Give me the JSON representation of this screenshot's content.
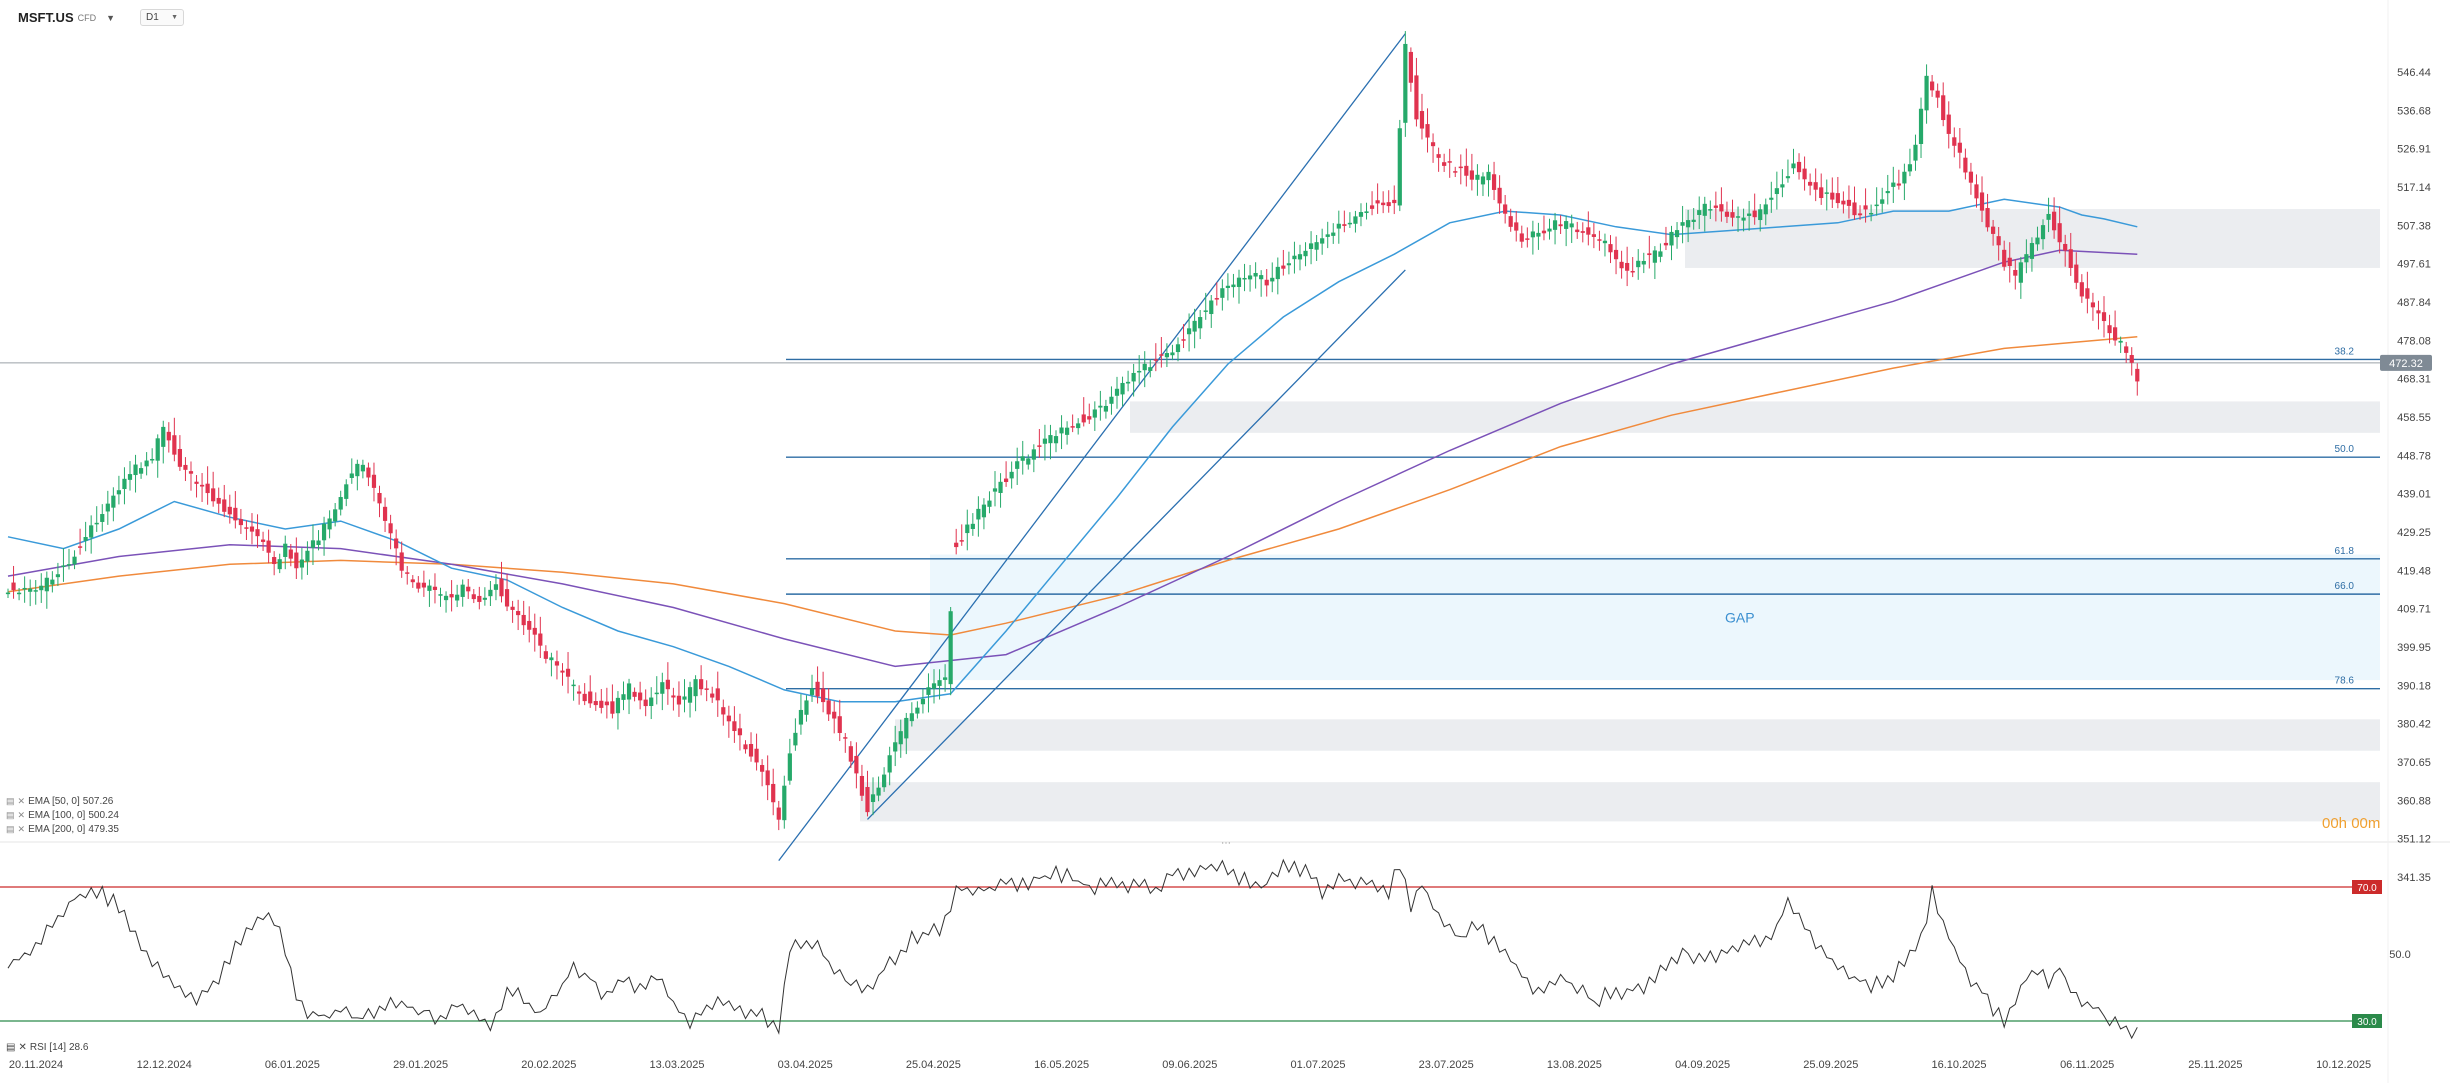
{
  "header": {
    "symbol": "MSFT.US",
    "symbol_suffix": "CFD",
    "timeframe": "D1"
  },
  "colors": {
    "bull": "#26a96a",
    "bear": "#e0334f",
    "ema50": "#3a9ad9",
    "ema100": "#7b52b8",
    "ema200": "#f08a3c",
    "fib": "#2e6da4",
    "rsi_line": "#333333",
    "rsi_upper": "#cc2b2b",
    "rsi_lower": "#2b8a4a",
    "price_tag": "#7f8a95"
  },
  "axis": {
    "price_ticks": [
      "546.44",
      "536.68",
      "526.91",
      "517.14",
      "507.38",
      "497.61",
      "487.84",
      "478.08",
      "468.31",
      "458.55",
      "448.78",
      "439.01",
      "429.25",
      "419.48",
      "409.71",
      "399.95",
      "390.18",
      "380.42",
      "370.65",
      "360.88",
      "351.12",
      "341.35"
    ],
    "date_ticks": [
      "20.11.2024",
      "12.12.2024",
      "06.01.2025",
      "29.01.2025",
      "20.02.2025",
      "13.03.2025",
      "03.04.2025",
      "25.04.2025",
      "16.05.2025",
      "09.06.2025",
      "01.07.2025",
      "23.07.2025",
      "13.08.2025",
      "04.09.2025",
      "25.09.2025",
      "16.10.2025",
      "06.11.2025",
      "25.11.2025",
      "10.12.2025"
    ],
    "current_price": "472.32",
    "rsi_ticks": [
      "70.0",
      "50.0",
      "30.0"
    ]
  },
  "fib_levels": [
    {
      "label": "38.2",
      "price": 473.2
    },
    {
      "label": "50.0",
      "price": 448.3
    },
    {
      "label": "61.8",
      "price": 422.4
    },
    {
      "label": "66.0",
      "price": 413.4
    },
    {
      "label": "78.6",
      "price": 389.3
    }
  ],
  "zones": [
    {
      "label": "",
      "from": 496.5,
      "to": 511.5
    },
    {
      "label": "",
      "from": 454.5,
      "to": 462.5
    },
    {
      "label": "GAP",
      "from": 391.5,
      "to": 423.5
    },
    {
      "label": "",
      "from": 373.5,
      "to": 381.5
    },
    {
      "label": "",
      "from": 355.5,
      "to": 365.5
    }
  ],
  "indicators": {
    "ema50": {
      "label": "EMA [50, 0]",
      "value": "507.26"
    },
    "ema100": {
      "label": "EMA [100, 0]",
      "value": "500.24"
    },
    "ema200": {
      "label": "EMA [200, 0]",
      "value": "479.35"
    },
    "rsi": {
      "label": "RSI [14]",
      "value": "28.6"
    }
  },
  "countdown": "00h 00m",
  "chart_data": {
    "type": "candlestick",
    "title": "",
    "x_start": "20.11.2024",
    "x_end": "10.12.2025",
    "ylim": [
      341.35,
      556.2
    ],
    "price_path": [
      [
        0,
        415
      ],
      [
        5,
        414
      ],
      [
        10,
        420
      ],
      [
        14,
        428
      ],
      [
        18,
        436
      ],
      [
        22,
        444
      ],
      [
        26,
        449
      ],
      [
        28,
        455
      ],
      [
        31,
        447
      ],
      [
        34,
        441
      ],
      [
        37,
        438
      ],
      [
        40,
        434
      ],
      [
        43,
        430
      ],
      [
        46,
        427
      ],
      [
        48,
        421
      ],
      [
        50,
        426
      ],
      [
        52,
        420
      ],
      [
        54,
        424
      ],
      [
        56,
        428
      ],
      [
        58,
        433
      ],
      [
        60,
        439
      ],
      [
        62,
        445
      ],
      [
        64,
        447
      ],
      [
        66,
        440
      ],
      [
        68,
        432
      ],
      [
        71,
        420
      ],
      [
        74,
        416
      ],
      [
        77,
        414
      ],
      [
        80,
        412
      ],
      [
        82,
        416
      ],
      [
        85,
        412
      ],
      [
        88,
        416
      ],
      [
        91,
        409
      ],
      [
        94,
        404
      ],
      [
        97,
        398
      ],
      [
        100,
        393
      ],
      [
        103,
        388
      ],
      [
        106,
        386
      ],
      [
        109,
        384
      ],
      [
        112,
        390
      ],
      [
        115,
        385
      ],
      [
        118,
        390
      ],
      [
        121,
        385
      ],
      [
        124,
        391
      ],
      [
        127,
        388
      ],
      [
        130,
        380
      ],
      [
        133,
        375
      ],
      [
        135,
        371
      ],
      [
        137,
        364
      ],
      [
        139,
        356
      ],
      [
        141,
        374
      ],
      [
        143,
        384
      ],
      [
        145,
        390
      ],
      [
        147,
        386
      ],
      [
        149,
        381
      ],
      [
        151,
        376
      ],
      [
        153,
        367
      ],
      [
        155,
        359
      ],
      [
        157,
        365
      ],
      [
        159,
        372
      ],
      [
        161,
        378
      ],
      [
        163,
        384
      ],
      [
        165,
        387
      ],
      [
        167,
        390
      ],
      [
        169,
        392
      ],
      [
        171,
        426
      ],
      [
        173,
        430
      ],
      [
        175,
        434
      ],
      [
        177,
        438
      ],
      [
        180,
        443
      ],
      [
        183,
        448
      ],
      [
        186,
        451
      ],
      [
        189,
        454
      ],
      [
        192,
        457
      ],
      [
        195,
        459
      ],
      [
        198,
        462
      ],
      [
        201,
        467
      ],
      [
        204,
        470
      ],
      [
        207,
        473
      ],
      [
        210,
        476
      ],
      [
        213,
        480
      ],
      [
        216,
        486
      ],
      [
        219,
        491
      ],
      [
        222,
        493
      ],
      [
        225,
        495
      ],
      [
        227,
        492
      ],
      [
        229,
        496
      ],
      [
        232,
        499
      ],
      [
        235,
        502
      ],
      [
        238,
        505
      ],
      [
        241,
        508
      ],
      [
        244,
        511
      ],
      [
        247,
        513
      ],
      [
        250,
        513
      ],
      [
        252,
        553
      ],
      [
        254,
        535
      ],
      [
        256,
        529
      ],
      [
        258,
        524
      ],
      [
        261,
        522
      ],
      [
        264,
        519
      ],
      [
        267,
        520
      ],
      [
        269,
        513
      ],
      [
        271,
        508
      ],
      [
        273,
        504
      ],
      [
        276,
        505
      ],
      [
        279,
        508
      ],
      [
        282,
        507
      ],
      [
        285,
        505
      ],
      [
        288,
        503
      ],
      [
        290,
        498
      ],
      [
        292,
        495
      ],
      [
        294,
        498
      ],
      [
        297,
        500
      ],
      [
        300,
        505
      ],
      [
        303,
        508
      ],
      [
        306,
        512
      ],
      [
        309,
        511
      ],
      [
        312,
        509
      ],
      [
        315,
        510
      ],
      [
        318,
        514
      ],
      [
        320,
        518
      ],
      [
        322,
        524
      ],
      [
        324,
        519
      ],
      [
        327,
        515
      ],
      [
        330,
        514
      ],
      [
        333,
        511
      ],
      [
        336,
        511
      ],
      [
        339,
        516
      ],
      [
        342,
        520
      ],
      [
        344,
        528
      ],
      [
        346,
        545
      ],
      [
        348,
        540
      ],
      [
        350,
        530
      ],
      [
        352,
        525
      ],
      [
        354,
        518
      ],
      [
        356,
        511
      ],
      [
        358,
        505
      ],
      [
        360,
        498
      ],
      [
        362,
        494
      ],
      [
        364,
        500
      ],
      [
        366,
        505
      ],
      [
        368,
        510
      ],
      [
        370,
        503
      ],
      [
        372,
        497
      ],
      [
        374,
        490
      ],
      [
        377,
        484
      ],
      [
        379,
        480
      ],
      [
        381,
        478
      ],
      [
        383,
        472
      ],
      [
        384,
        467
      ]
    ],
    "rsi_path": [
      [
        0,
        47
      ],
      [
        4,
        52
      ],
      [
        8,
        60
      ],
      [
        12,
        68
      ],
      [
        16,
        70
      ],
      [
        19,
        67
      ],
      [
        22,
        60
      ],
      [
        25,
        51
      ],
      [
        28,
        46
      ],
      [
        31,
        40
      ],
      [
        34,
        38
      ],
      [
        37,
        42
      ],
      [
        40,
        50
      ],
      [
        43,
        58
      ],
      [
        46,
        64
      ],
      [
        48,
        62
      ],
      [
        50,
        52
      ],
      [
        52,
        40
      ],
      [
        54,
        34
      ],
      [
        57,
        33
      ],
      [
        60,
        35
      ],
      [
        63,
        31
      ],
      [
        66,
        34
      ],
      [
        69,
        38
      ],
      [
        72,
        36
      ],
      [
        75,
        34
      ],
      [
        78,
        32
      ],
      [
        81,
        36
      ],
      [
        84,
        33
      ],
      [
        87,
        30
      ],
      [
        90,
        40
      ],
      [
        93,
        38
      ],
      [
        96,
        33
      ],
      [
        99,
        40
      ],
      [
        102,
        47
      ],
      [
        105,
        44
      ],
      [
        108,
        38
      ],
      [
        111,
        44
      ],
      [
        114,
        41
      ],
      [
        117,
        44
      ],
      [
        120,
        36
      ],
      [
        123,
        31
      ],
      [
        126,
        34
      ],
      [
        129,
        37
      ],
      [
        132,
        34
      ],
      [
        135,
        35
      ],
      [
        137,
        31
      ],
      [
        139,
        29
      ],
      [
        141,
        52
      ],
      [
        143,
        55
      ],
      [
        146,
        53
      ],
      [
        149,
        47
      ],
      [
        152,
        44
      ],
      [
        155,
        40
      ],
      [
        158,
        47
      ],
      [
        160,
        50
      ],
      [
        163,
        56
      ],
      [
        166,
        58
      ],
      [
        168,
        59
      ],
      [
        171,
        70
      ],
      [
        174,
        71
      ],
      [
        177,
        70
      ],
      [
        180,
        73
      ],
      [
        183,
        72
      ],
      [
        186,
        74
      ],
      [
        189,
        75
      ],
      [
        192,
        74
      ],
      [
        195,
        71
      ],
      [
        198,
        72
      ],
      [
        201,
        71
      ],
      [
        204,
        73
      ],
      [
        207,
        71
      ],
      [
        210,
        75
      ],
      [
        213,
        76
      ],
      [
        216,
        77
      ],
      [
        219,
        78
      ],
      [
        222,
        74
      ],
      [
        225,
        72
      ],
      [
        228,
        75
      ],
      [
        231,
        78
      ],
      [
        234,
        76
      ],
      [
        237,
        70
      ],
      [
        240,
        74
      ],
      [
        243,
        73
      ],
      [
        246,
        72
      ],
      [
        249,
        70
      ],
      [
        251,
        78
      ],
      [
        253,
        65
      ],
      [
        255,
        72
      ],
      [
        257,
        66
      ],
      [
        259,
        60
      ],
      [
        262,
        56
      ],
      [
        265,
        60
      ],
      [
        268,
        55
      ],
      [
        270,
        51
      ],
      [
        272,
        48
      ],
      [
        274,
        42
      ],
      [
        277,
        40
      ],
      [
        280,
        45
      ],
      [
        283,
        41
      ],
      [
        286,
        37
      ],
      [
        289,
        40
      ],
      [
        291,
        38
      ],
      [
        293,
        41
      ],
      [
        296,
        42
      ],
      [
        299,
        48
      ],
      [
        302,
        52
      ],
      [
        305,
        49
      ],
      [
        308,
        50
      ],
      [
        311,
        53
      ],
      [
        314,
        55
      ],
      [
        317,
        56
      ],
      [
        319,
        58
      ],
      [
        321,
        68
      ],
      [
        324,
        60
      ],
      [
        327,
        52
      ],
      [
        330,
        48
      ],
      [
        333,
        44
      ],
      [
        336,
        42
      ],
      [
        339,
        44
      ],
      [
        342,
        48
      ],
      [
        345,
        56
      ],
      [
        347,
        70
      ],
      [
        350,
        56
      ],
      [
        352,
        49
      ],
      [
        354,
        44
      ],
      [
        356,
        40
      ],
      [
        358,
        35
      ],
      [
        360,
        31
      ],
      [
        362,
        38
      ],
      [
        364,
        45
      ],
      [
        366,
        47
      ],
      [
        368,
        43
      ],
      [
        370,
        47
      ],
      [
        372,
        40
      ],
      [
        374,
        37
      ],
      [
        377,
        34
      ],
      [
        380,
        30
      ],
      [
        383,
        28.6
      ]
    ],
    "ema50_path": [
      [
        0,
        428
      ],
      [
        10,
        425
      ],
      [
        20,
        430
      ],
      [
        30,
        437
      ],
      [
        40,
        433
      ],
      [
        50,
        430
      ],
      [
        60,
        432
      ],
      [
        70,
        427
      ],
      [
        80,
        420
      ],
      [
        90,
        417
      ],
      [
        100,
        410
      ],
      [
        110,
        404
      ],
      [
        120,
        400
      ],
      [
        130,
        395
      ],
      [
        140,
        389
      ],
      [
        150,
        386
      ],
      [
        160,
        386
      ],
      [
        170,
        388
      ],
      [
        180,
        404
      ],
      [
        190,
        421
      ],
      [
        200,
        438
      ],
      [
        210,
        456
      ],
      [
        220,
        472
      ],
      [
        230,
        484
      ],
      [
        240,
        493
      ],
      [
        250,
        500
      ],
      [
        260,
        508
      ],
      [
        270,
        511
      ],
      [
        280,
        510
      ],
      [
        290,
        507
      ],
      [
        300,
        505
      ],
      [
        310,
        506
      ],
      [
        320,
        507
      ],
      [
        330,
        508
      ],
      [
        340,
        511
      ],
      [
        350,
        511
      ],
      [
        360,
        514
      ],
      [
        370,
        512
      ],
      [
        374,
        510
      ],
      [
        378,
        509
      ],
      [
        384,
        507
      ]
    ],
    "ema100_path": [
      [
        0,
        418
      ],
      [
        20,
        423
      ],
      [
        40,
        426
      ],
      [
        60,
        425
      ],
      [
        80,
        421
      ],
      [
        100,
        416
      ],
      [
        120,
        410
      ],
      [
        140,
        402
      ],
      [
        160,
        395
      ],
      [
        180,
        398
      ],
      [
        200,
        410
      ],
      [
        220,
        423
      ],
      [
        240,
        437
      ],
      [
        260,
        450
      ],
      [
        280,
        462
      ],
      [
        300,
        472
      ],
      [
        320,
        480
      ],
      [
        340,
        488
      ],
      [
        350,
        493
      ],
      [
        360,
        498
      ],
      [
        370,
        501
      ],
      [
        384,
        500
      ]
    ],
    "ema200_path": [
      [
        0,
        414
      ],
      [
        20,
        418
      ],
      [
        40,
        421
      ],
      [
        60,
        422
      ],
      [
        80,
        421
      ],
      [
        100,
        419
      ],
      [
        120,
        416
      ],
      [
        140,
        411
      ],
      [
        160,
        404
      ],
      [
        170,
        403
      ],
      [
        180,
        406
      ],
      [
        200,
        413
      ],
      [
        220,
        422
      ],
      [
        240,
        430
      ],
      [
        260,
        440
      ],
      [
        280,
        451
      ],
      [
        300,
        459
      ],
      [
        320,
        465
      ],
      [
        340,
        471
      ],
      [
        360,
        476
      ],
      [
        384,
        479
      ]
    ],
    "trendlines": [
      {
        "from": [
          139,
          345.5
        ],
        "to": [
          252,
          556.2
        ]
      },
      {
        "from": [
          155,
          356
        ],
        "to": [
          252,
          496
        ]
      }
    ]
  }
}
